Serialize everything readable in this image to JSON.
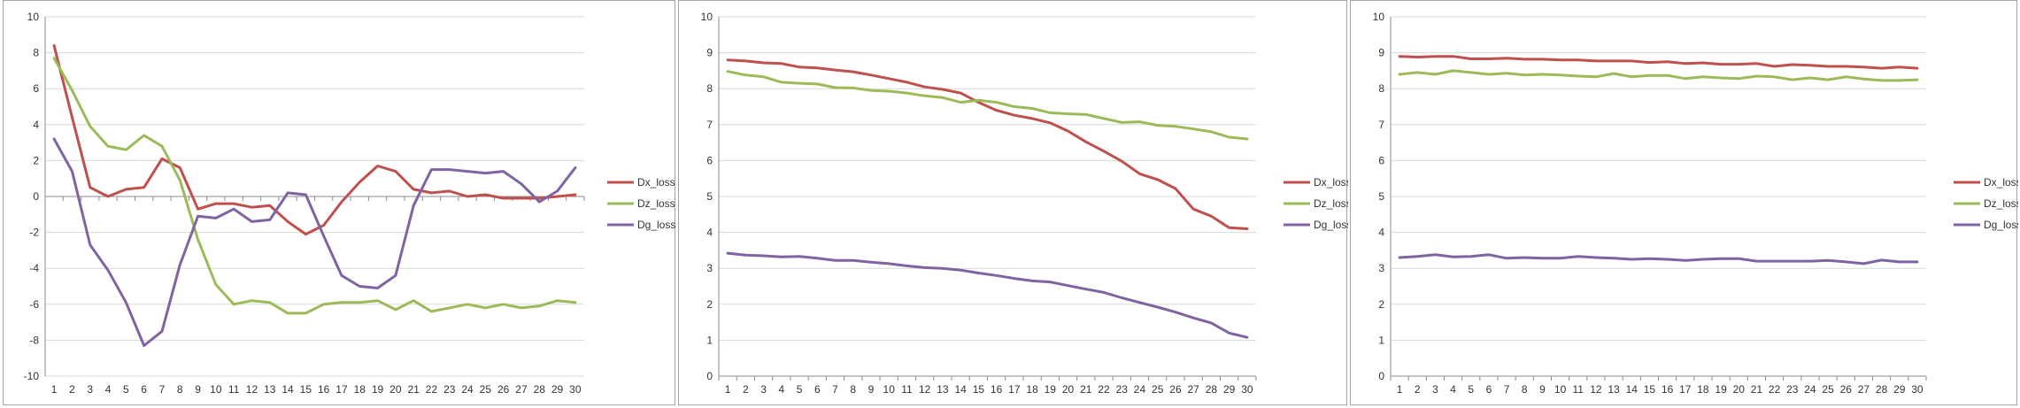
{
  "chart_data": [
    {
      "type": "line",
      "title": "",
      "xlabel": "",
      "ylabel": "",
      "ylim": [
        -10,
        10
      ],
      "ytick_step": 2,
      "grid": "horizontal",
      "legend_position": "right",
      "categories": [
        "1",
        "2",
        "3",
        "4",
        "5",
        "6",
        "7",
        "8",
        "9",
        "10",
        "11",
        "12",
        "13",
        "14",
        "15",
        "16",
        "17",
        "18",
        "19",
        "20",
        "21",
        "22",
        "23",
        "24",
        "25",
        "26",
        "27",
        "28",
        "29",
        "30"
      ],
      "series": [
        {
          "name": "Dx_loss",
          "color": "#c0504d",
          "values": [
            8.4,
            4.4,
            0.5,
            0.0,
            0.4,
            0.5,
            2.1,
            1.6,
            -0.7,
            -0.4,
            -0.4,
            -0.6,
            -0.5,
            -1.4,
            -2.1,
            -1.6,
            -0.3,
            0.8,
            1.7,
            1.4,
            0.4,
            0.2,
            0.3,
            0.0,
            0.1,
            -0.1,
            -0.1,
            -0.1,
            0.0,
            0.1
          ]
        },
        {
          "name": "Dz_loss",
          "color": "#9bbb59",
          "values": [
            7.7,
            5.9,
            3.9,
            2.8,
            2.6,
            3.4,
            2.8,
            0.9,
            -2.4,
            -4.9,
            -6.0,
            -5.8,
            -5.9,
            -6.5,
            -6.5,
            -6.0,
            -5.9,
            -5.9,
            -5.8,
            -6.3,
            -5.8,
            -6.4,
            -6.2,
            -6.0,
            -6.2,
            -6.0,
            -6.2,
            -6.1,
            -5.8,
            -5.9
          ]
        },
        {
          "name": "Dg_loss",
          "color": "#8064a2",
          "values": [
            3.2,
            1.4,
            -2.7,
            -4.1,
            -5.9,
            -8.3,
            -7.5,
            -3.8,
            -1.1,
            -1.2,
            -0.7,
            -1.4,
            -1.3,
            0.2,
            0.1,
            -2.2,
            -4.4,
            -5.0,
            -5.1,
            -4.4,
            -0.5,
            1.5,
            1.5,
            1.4,
            1.3,
            1.4,
            0.7,
            -0.3,
            0.3,
            1.6
          ]
        }
      ]
    },
    {
      "type": "line",
      "title": "",
      "xlabel": "",
      "ylabel": "",
      "ylim": [
        0,
        10
      ],
      "ytick_step": 1,
      "grid": "horizontal",
      "legend_position": "right",
      "categories": [
        "1",
        "2",
        "3",
        "4",
        "5",
        "6",
        "7",
        "8",
        "9",
        "10",
        "11",
        "12",
        "13",
        "14",
        "15",
        "16",
        "17",
        "18",
        "19",
        "20",
        "21",
        "22",
        "23",
        "24",
        "25",
        "26",
        "27",
        "28",
        "29",
        "30"
      ],
      "series": [
        {
          "name": "Dx_loss",
          "color": "#c0504d",
          "values": [
            8.8,
            8.77,
            8.72,
            8.7,
            8.6,
            8.58,
            8.52,
            8.47,
            8.38,
            8.28,
            8.18,
            8.05,
            7.98,
            7.88,
            7.62,
            7.4,
            7.26,
            7.17,
            7.05,
            6.82,
            6.52,
            6.26,
            5.98,
            5.63,
            5.47,
            5.22,
            4.65,
            4.45,
            4.13,
            4.1
          ]
        },
        {
          "name": "Dz_loss",
          "color": "#9bbb59",
          "values": [
            8.48,
            8.38,
            8.33,
            8.18,
            8.15,
            8.13,
            8.03,
            8.02,
            7.95,
            7.93,
            7.88,
            7.8,
            7.75,
            7.62,
            7.68,
            7.62,
            7.5,
            7.45,
            7.33,
            7.3,
            7.28,
            7.17,
            7.06,
            7.08,
            6.98,
            6.95,
            6.88,
            6.8,
            6.65,
            6.6
          ]
        },
        {
          "name": "Dg_loss",
          "color": "#8064a2",
          "values": [
            3.42,
            3.37,
            3.35,
            3.32,
            3.33,
            3.28,
            3.22,
            3.22,
            3.17,
            3.13,
            3.07,
            3.02,
            3.0,
            2.95,
            2.87,
            2.8,
            2.72,
            2.65,
            2.62,
            2.52,
            2.42,
            2.33,
            2.18,
            2.05,
            1.92,
            1.78,
            1.62,
            1.48,
            1.2,
            1.08
          ]
        }
      ]
    },
    {
      "type": "line",
      "title": "",
      "xlabel": "",
      "ylabel": "",
      "ylim": [
        0,
        10
      ],
      "ytick_step": 1,
      "grid": "horizontal",
      "legend_position": "right",
      "categories": [
        "1",
        "2",
        "3",
        "4",
        "5",
        "6",
        "7",
        "8",
        "9",
        "10",
        "11",
        "12",
        "13",
        "14",
        "15",
        "16",
        "17",
        "18",
        "19",
        "20",
        "21",
        "22",
        "23",
        "24",
        "25",
        "26",
        "27",
        "28",
        "29",
        "30"
      ],
      "series": [
        {
          "name": "Dx_loss",
          "color": "#c0504d",
          "values": [
            8.9,
            8.88,
            8.9,
            8.9,
            8.83,
            8.83,
            8.85,
            8.82,
            8.82,
            8.8,
            8.8,
            8.77,
            8.77,
            8.77,
            8.73,
            8.75,
            8.7,
            8.72,
            8.68,
            8.68,
            8.7,
            8.62,
            8.67,
            8.65,
            8.62,
            8.62,
            8.6,
            8.57,
            8.6,
            8.57
          ]
        },
        {
          "name": "Dz_loss",
          "color": "#9bbb59",
          "values": [
            8.4,
            8.45,
            8.4,
            8.5,
            8.45,
            8.4,
            8.43,
            8.38,
            8.4,
            8.38,
            8.35,
            8.33,
            8.42,
            8.33,
            8.37,
            8.37,
            8.28,
            8.33,
            8.3,
            8.28,
            8.35,
            8.33,
            8.25,
            8.3,
            8.25,
            8.33,
            8.27,
            8.23,
            8.23,
            8.25
          ]
        },
        {
          "name": "Dg_loss",
          "color": "#8064a2",
          "values": [
            3.3,
            3.33,
            3.38,
            3.32,
            3.33,
            3.38,
            3.28,
            3.3,
            3.28,
            3.28,
            3.33,
            3.3,
            3.28,
            3.25,
            3.27,
            3.25,
            3.22,
            3.25,
            3.27,
            3.27,
            3.2,
            3.2,
            3.2,
            3.2,
            3.22,
            3.18,
            3.13,
            3.23,
            3.18,
            3.18
          ]
        }
      ]
    }
  ]
}
